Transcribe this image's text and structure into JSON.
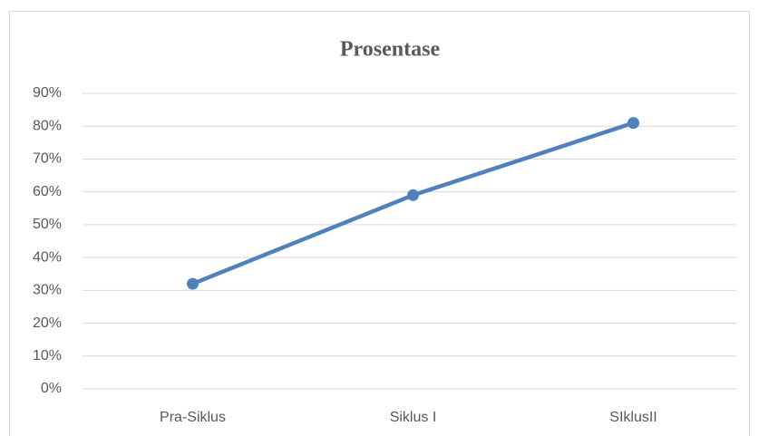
{
  "chart_data": {
    "type": "line",
    "title": "Prosentase",
    "categories": [
      "Pra-Siklus",
      "Siklus I",
      "SIklusII"
    ],
    "values": [
      32,
      59,
      81
    ],
    "color": "#4f81bd",
    "ylim": [
      0,
      90
    ],
    "yticks": [
      {
        "value": 0,
        "label": "0%"
      },
      {
        "value": 10,
        "label": "10%"
      },
      {
        "value": 20,
        "label": "20%"
      },
      {
        "value": 30,
        "label": "30%"
      },
      {
        "value": 40,
        "label": "40%"
      },
      {
        "value": 50,
        "label": "50%"
      },
      {
        "value": 60,
        "label": "60%"
      },
      {
        "value": 70,
        "label": "70%"
      },
      {
        "value": 80,
        "label": "80%"
      },
      {
        "value": 90,
        "label": "90%"
      }
    ],
    "grid": true
  }
}
